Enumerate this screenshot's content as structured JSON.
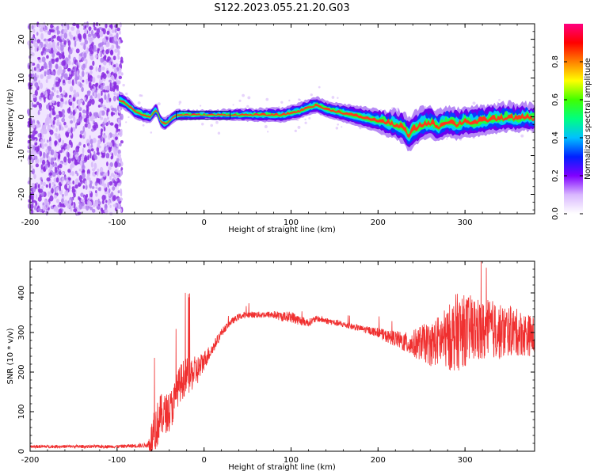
{
  "figure": {
    "title": "S122.2023.055.21.20.G03"
  },
  "chart_data": [
    {
      "type": "heatmap",
      "xlabel": "Height of straight line (km)",
      "ylabel": "Frequency (Hz)",
      "xlim": [
        -200,
        380
      ],
      "ylim": [
        -25,
        24
      ],
      "xticks": [
        -200,
        -100,
        0,
        100,
        200,
        300
      ],
      "yticks": [
        -20,
        -10,
        0,
        10,
        20
      ],
      "colorbar": {
        "label": "Normalized spectral amplitude",
        "range": [
          0,
          1
        ],
        "ticks": [
          0.0,
          0.2,
          0.4,
          0.6,
          0.8
        ],
        "tick_labels": [
          "0.0",
          "0.2",
          "0.4",
          "0.6",
          "0.8"
        ],
        "colormap": [
          "#ffffff",
          "#d9b8ff",
          "#8000ff",
          "#0020ff",
          "#00c0ff",
          "#00ff80",
          "#40ff00",
          "#ffff00",
          "#ff8000",
          "#ff0000",
          "#ff0080"
        ]
      },
      "noise_region_x": [
        -200,
        -98
      ],
      "ridge": {
        "x": [
          -98,
          -90,
          -80,
          -70,
          -62,
          -55,
          -50,
          -45,
          -40,
          -35,
          -30,
          0,
          30,
          60,
          90,
          110,
          120,
          130,
          140,
          150,
          160,
          170,
          180,
          190,
          200,
          210,
          220,
          230,
          235,
          240,
          250,
          260,
          270,
          280,
          290,
          300,
          310,
          320,
          330,
          340,
          350,
          360,
          370,
          380
        ],
        "freq": [
          4.5,
          3.5,
          1.5,
          0.5,
          0.0,
          2.0,
          -1.0,
          -2.0,
          -1.0,
          0.0,
          0.5,
          0.5,
          0.5,
          0.5,
          0.5,
          1.5,
          2.5,
          3.0,
          2.0,
          1.5,
          1.0,
          0.5,
          0.0,
          -0.5,
          -1.0,
          -1.5,
          -2.0,
          -3.0,
          -5.0,
          -3.5,
          -2.0,
          -1.5,
          -2.5,
          -1.0,
          -2.0,
          -1.0,
          -1.5,
          -1.0,
          -0.5,
          -0.5,
          0.0,
          -0.5,
          0.0,
          -0.5
        ]
      },
      "ridge_width_hz": {
        "x": [
          -98,
          -30,
          0,
          30,
          100,
          150,
          200,
          240,
          260,
          300,
          380
        ],
        "width": [
          2.0,
          1.5,
          1.2,
          1.5,
          2.0,
          2.2,
          3.0,
          4.5,
          4.0,
          4.0,
          3.5
        ]
      }
    },
    {
      "type": "line",
      "xlabel": "Height of straight line (km)",
      "ylabel": "SNR (10 * v/v)",
      "xlim": [
        -200,
        380
      ],
      "ylim": [
        0,
        480
      ],
      "xticks": [
        -200,
        -100,
        0,
        100,
        200,
        300
      ],
      "yticks": [
        0,
        100,
        200,
        300,
        400
      ],
      "color": "#f03030",
      "series": [
        {
          "x": [
            -200,
            -150,
            -100,
            -65,
            -60,
            -55,
            -50,
            -45,
            -40,
            -35,
            -30,
            -25,
            -20,
            -15,
            -10,
            -5,
            0,
            10,
            20,
            30,
            40,
            50,
            60,
            70,
            80,
            90,
            100,
            105,
            110,
            120,
            130,
            140,
            150,
            160,
            170,
            180,
            190,
            200,
            210,
            220,
            230,
            240,
            250,
            260,
            270,
            280,
            290,
            300,
            310,
            320,
            330,
            340,
            350,
            360,
            370,
            380
          ],
          "y": [
            12,
            12,
            12,
            15,
            30,
            60,
            90,
            95,
            100,
            120,
            160,
            180,
            190,
            195,
            200,
            210,
            230,
            260,
            300,
            325,
            340,
            345,
            345,
            345,
            345,
            340,
            340,
            335,
            330,
            325,
            335,
            330,
            325,
            320,
            315,
            310,
            305,
            300,
            290,
            285,
            275,
            270,
            275,
            270,
            280,
            285,
            300,
            305,
            310,
            300,
            310,
            300,
            305,
            300,
            295,
            290
          ],
          "noise_amplitude": [
            4,
            4,
            4,
            6,
            50,
            60,
            55,
            50,
            50,
            50,
            45,
            50,
            45,
            45,
            40,
            35,
            25,
            15,
            10,
            8,
            8,
            8,
            8,
            8,
            10,
            12,
            14,
            14,
            12,
            10,
            8,
            8,
            8,
            8,
            8,
            8,
            10,
            12,
            16,
            20,
            25,
            35,
            45,
            55,
            65,
            80,
            100,
            90,
            85,
            80,
            75,
            70,
            65,
            60,
            55,
            50
          ]
        }
      ]
    }
  ]
}
